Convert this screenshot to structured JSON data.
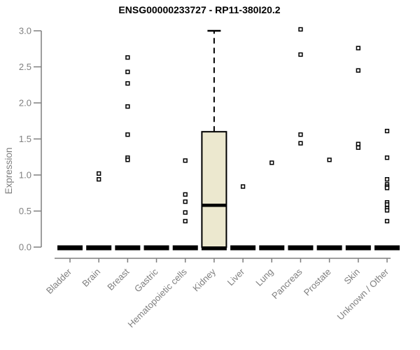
{
  "window": {
    "background": "#ffffff"
  },
  "chart_data": {
    "type": "boxplot",
    "title": "ENSG00000233727 - RP11-380I20.2",
    "xlabel": "",
    "ylabel": "Expression",
    "ylim": [
      0.0,
      3.0
    ],
    "yticks": [
      0.0,
      0.5,
      1.0,
      1.5,
      2.0,
      2.5,
      3.0
    ],
    "ytick_labels": [
      "0.0",
      "0.5",
      "1.0",
      "1.5",
      "2.0",
      "2.5",
      "3.0"
    ],
    "grid": false,
    "legend": "none",
    "categories": [
      "Bladder",
      "Brain",
      "Breast",
      "Gastric",
      "Hematopoietic cells",
      "Kidney",
      "Liver",
      "Lung",
      "Pancreas",
      "Prostate",
      "Skin",
      "Unknown / Other"
    ],
    "boxes": [
      {
        "category": "Bladder",
        "q1": 0,
        "median": 0,
        "q3": 0,
        "whisker_low": 0,
        "whisker_high": 0,
        "outliers": []
      },
      {
        "category": "Brain",
        "q1": 0,
        "median": 0,
        "q3": 0,
        "whisker_low": 0,
        "whisker_high": 0,
        "outliers": [
          1.02,
          0.94
        ]
      },
      {
        "category": "Breast",
        "q1": 0,
        "median": 0,
        "q3": 0,
        "whisker_low": 0,
        "whisker_high": 0,
        "outliers": [
          2.63,
          2.43,
          2.27,
          1.95,
          1.56,
          1.24,
          1.21
        ]
      },
      {
        "category": "Gastric",
        "q1": 0,
        "median": 0,
        "q3": 0,
        "whisker_low": 0,
        "whisker_high": 0,
        "outliers": []
      },
      {
        "category": "Hematopoietic cells",
        "q1": 0,
        "median": 0,
        "q3": 0,
        "whisker_low": 0,
        "whisker_high": 0,
        "outliers": [
          1.2,
          0.73,
          0.63,
          0.48,
          0.36
        ]
      },
      {
        "category": "Kidney",
        "q1": 0,
        "median": 0.58,
        "q3": 1.6,
        "whisker_low": 0,
        "whisker_high": 3.0,
        "outliers": []
      },
      {
        "category": "Liver",
        "q1": 0,
        "median": 0,
        "q3": 0,
        "whisker_low": 0,
        "whisker_high": 0,
        "outliers": [
          0.84
        ]
      },
      {
        "category": "Lung",
        "q1": 0,
        "median": 0,
        "q3": 0,
        "whisker_low": 0,
        "whisker_high": 0,
        "outliers": [
          1.17
        ]
      },
      {
        "category": "Pancreas",
        "q1": 0,
        "median": 0,
        "q3": 0,
        "whisker_low": 0,
        "whisker_high": 0,
        "outliers": [
          3.02,
          2.67,
          1.56,
          1.44
        ]
      },
      {
        "category": "Prostate",
        "q1": 0,
        "median": 0,
        "q3": 0,
        "whisker_low": 0,
        "whisker_high": 0,
        "outliers": [
          1.21
        ]
      },
      {
        "category": "Skin",
        "q1": 0,
        "median": 0,
        "q3": 0,
        "whisker_low": 0,
        "whisker_high": 0,
        "outliers": [
          2.76,
          2.45,
          1.43,
          1.38
        ]
      },
      {
        "category": "Unknown / Other",
        "q1": 0,
        "median": 0,
        "q3": 0,
        "whisker_low": 0,
        "whisker_high": 0,
        "outliers": [
          1.61,
          1.24,
          0.94,
          0.87,
          0.84,
          0.82,
          0.62,
          0.59,
          0.54,
          0.51,
          0.36
        ]
      }
    ],
    "colors": {
      "box_fill": "#ece8cf",
      "box_border": "#000000",
      "median": "#000000",
      "whisker": "#000000",
      "outlier_stroke": "#000000",
      "outlier_fill": "#ffffff",
      "axis": "#7f7f7f",
      "tick_label": "#7f7f7f",
      "title": "#000000",
      "background": "#ffffff"
    }
  }
}
